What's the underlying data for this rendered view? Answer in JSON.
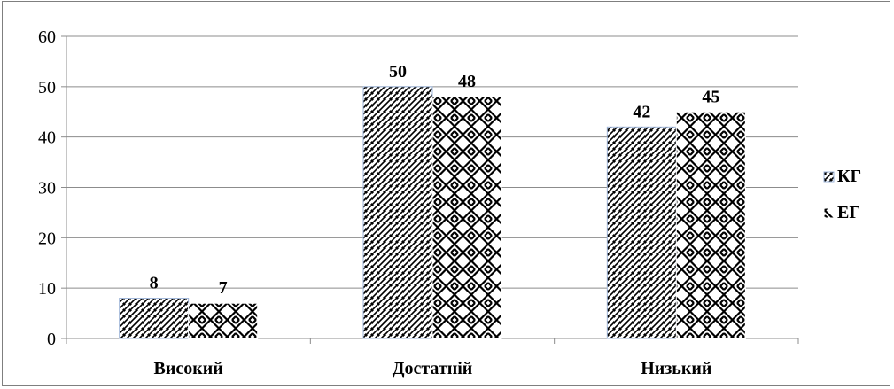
{
  "chart_data": {
    "type": "bar",
    "categories": [
      "Високий",
      "Достатній",
      "Низький"
    ],
    "series": [
      {
        "name": "КГ",
        "values": [
          8,
          50,
          42
        ],
        "pattern": "diagonal-hatch",
        "color": "#000000",
        "border": "#9eb5d8"
      },
      {
        "name": "ЕГ",
        "values": [
          7,
          48,
          45
        ],
        "pattern": "zigzag-weave",
        "color": "#000000",
        "border": "#ffffff"
      }
    ],
    "title": "",
    "xlabel": "",
    "ylabel": "",
    "ylim": [
      0,
      60
    ],
    "yticks": [
      0,
      10,
      20,
      30,
      40,
      50,
      60
    ],
    "grid": true,
    "legend_position": "right",
    "data_labels": true
  }
}
